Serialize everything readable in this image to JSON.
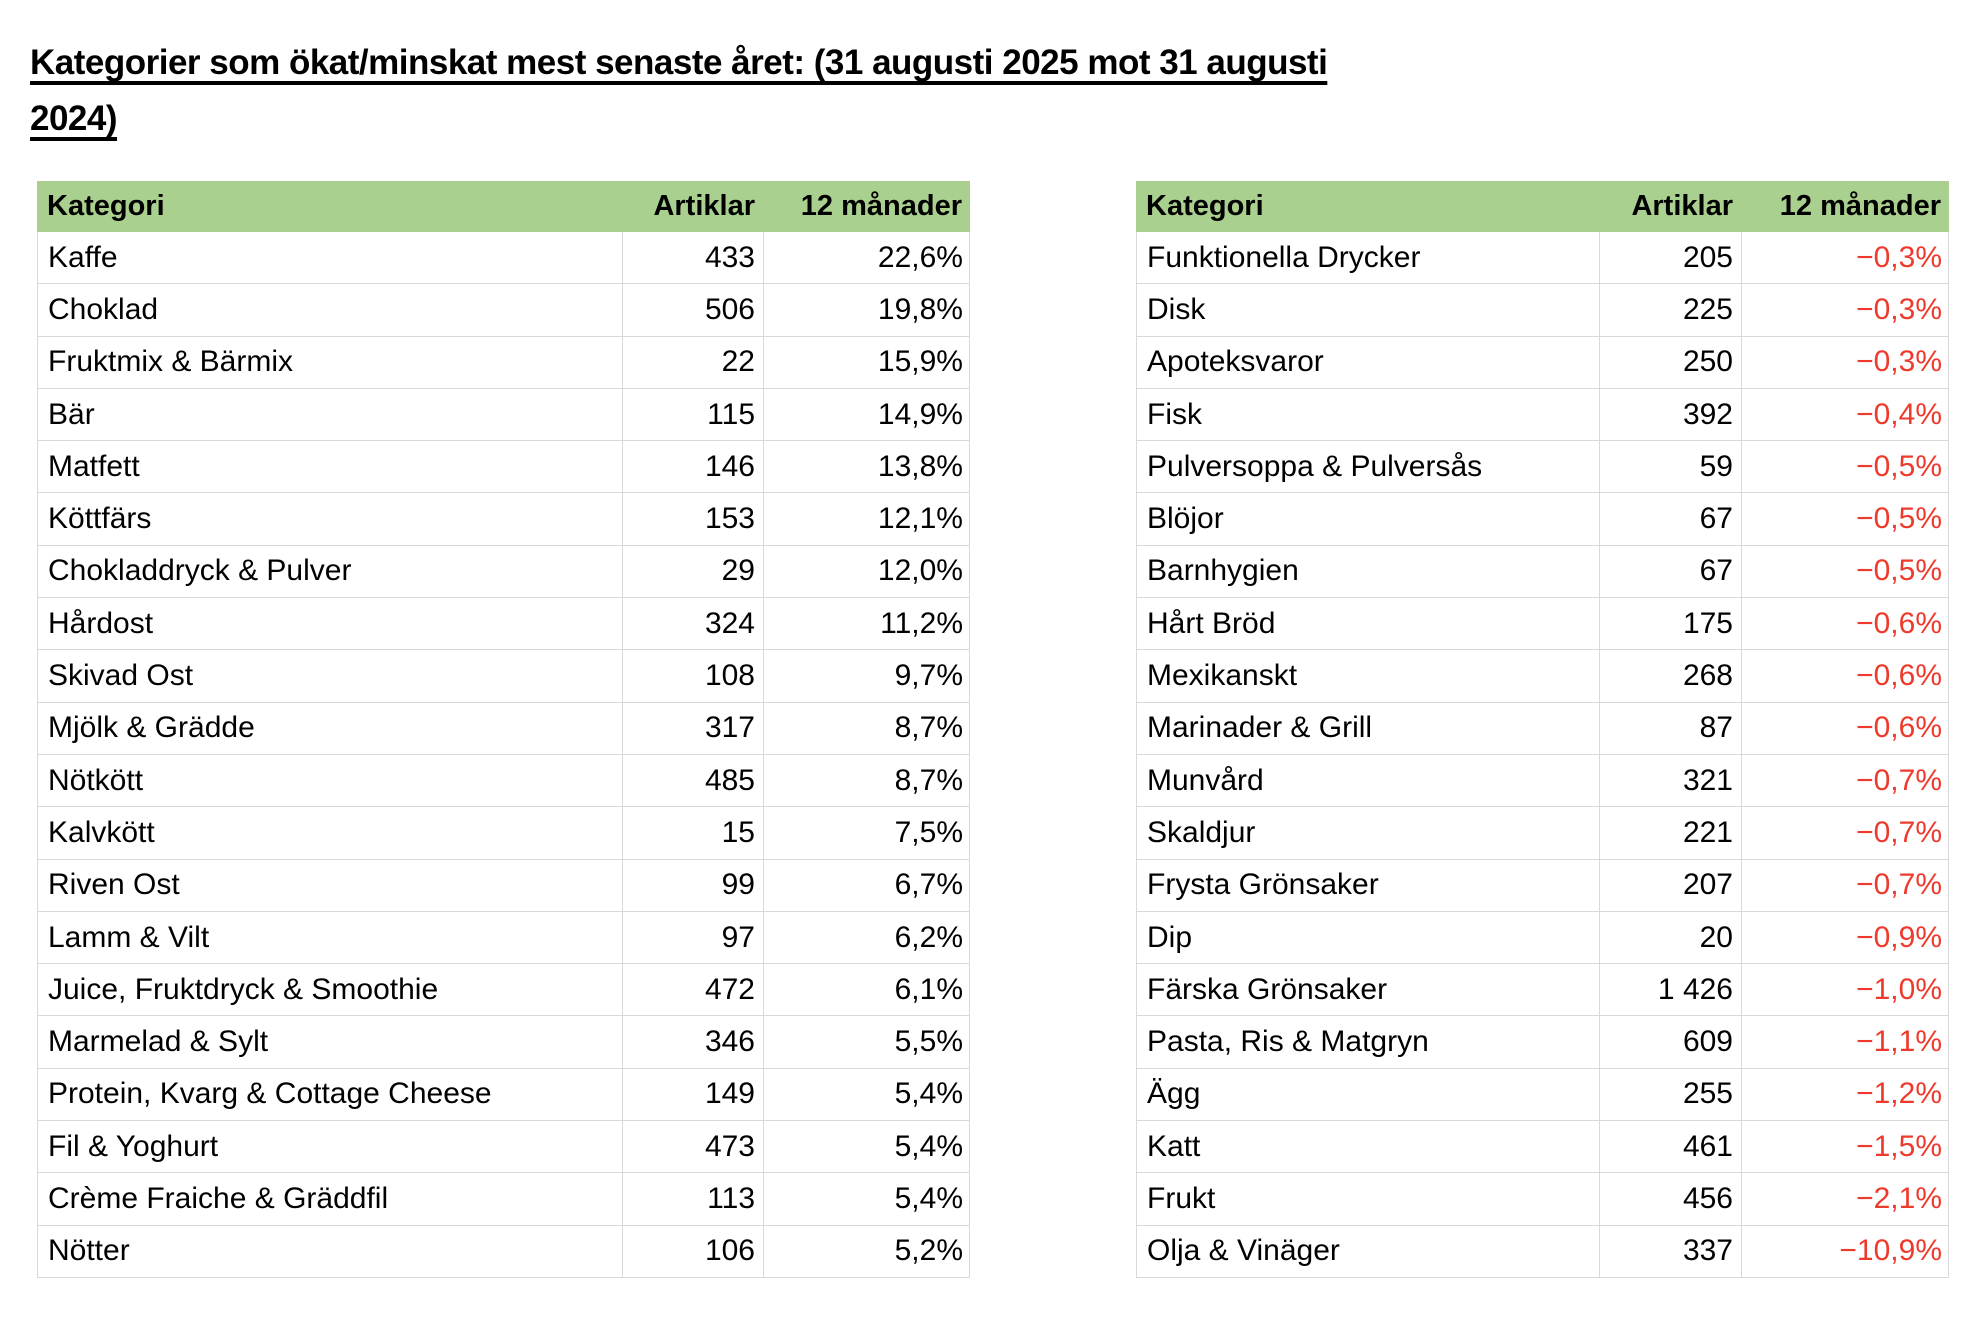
{
  "title": {
    "line1": "Kategorier som ökat/minskat mest senaste året: (31 augusti 2025 mot 31 augusti",
    "line2": "2024)"
  },
  "colors": {
    "header_bg": "#A9D08E",
    "border": "#D9D9D9",
    "negative": "#EE3A2C",
    "text": "#000000"
  },
  "left_table": {
    "headers": {
      "category": "Kategori",
      "articles": "Artiklar",
      "change": "12 månader"
    },
    "rows": [
      {
        "category": "Kaffe",
        "articles": "433",
        "change": "22,6%"
      },
      {
        "category": "Choklad",
        "articles": "506",
        "change": "19,8%"
      },
      {
        "category": "Fruktmix & Bärmix",
        "articles": "22",
        "change": "15,9%"
      },
      {
        "category": "Bär",
        "articles": "115",
        "change": "14,9%"
      },
      {
        "category": "Matfett",
        "articles": "146",
        "change": "13,8%"
      },
      {
        "category": "Köttfärs",
        "articles": "153",
        "change": "12,1%"
      },
      {
        "category": "Chokladdryck & Pulver",
        "articles": "29",
        "change": "12,0%"
      },
      {
        "category": "Hårdost",
        "articles": "324",
        "change": "11,2%"
      },
      {
        "category": "Skivad Ost",
        "articles": "108",
        "change": "9,7%"
      },
      {
        "category": "Mjölk & Grädde",
        "articles": "317",
        "change": "8,7%"
      },
      {
        "category": "Nötkött",
        "articles": "485",
        "change": "8,7%"
      },
      {
        "category": "Kalvkött",
        "articles": "15",
        "change": "7,5%"
      },
      {
        "category": "Riven Ost",
        "articles": "99",
        "change": "6,7%"
      },
      {
        "category": "Lamm & Vilt",
        "articles": "97",
        "change": "6,2%"
      },
      {
        "category": "Juice, Fruktdryck & Smoothie",
        "articles": "472",
        "change": "6,1%"
      },
      {
        "category": "Marmelad & Sylt",
        "articles": "346",
        "change": "5,5%"
      },
      {
        "category": "Protein, Kvarg & Cottage Cheese",
        "articles": "149",
        "change": "5,4%"
      },
      {
        "category": "Fil & Yoghurt",
        "articles": "473",
        "change": "5,4%"
      },
      {
        "category": "Crème Fraiche & Gräddfil",
        "articles": "113",
        "change": "5,4%"
      },
      {
        "category": "Nötter",
        "articles": "106",
        "change": "5,2%"
      }
    ]
  },
  "right_table": {
    "headers": {
      "category": "Kategori",
      "articles": "Artiklar",
      "change": "12 månader"
    },
    "rows": [
      {
        "category": "Funktionella Drycker",
        "articles": "205",
        "change": "−0,3%"
      },
      {
        "category": "Disk",
        "articles": "225",
        "change": "−0,3%"
      },
      {
        "category": "Apoteksvaror",
        "articles": "250",
        "change": "−0,3%"
      },
      {
        "category": "Fisk",
        "articles": "392",
        "change": "−0,4%"
      },
      {
        "category": "Pulversoppa & Pulversås",
        "articles": "59",
        "change": "−0,5%"
      },
      {
        "category": "Blöjor",
        "articles": "67",
        "change": "−0,5%"
      },
      {
        "category": "Barnhygien",
        "articles": "67",
        "change": "−0,5%"
      },
      {
        "category": "Hårt Bröd",
        "articles": "175",
        "change": "−0,6%"
      },
      {
        "category": "Mexikanskt",
        "articles": "268",
        "change": "−0,6%"
      },
      {
        "category": "Marinader & Grill",
        "articles": "87",
        "change": "−0,6%"
      },
      {
        "category": "Munvård",
        "articles": "321",
        "change": "−0,7%"
      },
      {
        "category": "Skaldjur",
        "articles": "221",
        "change": "−0,7%"
      },
      {
        "category": "Frysta Grönsaker",
        "articles": "207",
        "change": "−0,7%"
      },
      {
        "category": "Dip",
        "articles": "20",
        "change": "−0,9%"
      },
      {
        "category": "Färska Grönsaker",
        "articles": "1 426",
        "change": "−1,0%"
      },
      {
        "category": "Pasta, Ris & Matgryn",
        "articles": "609",
        "change": "−1,1%"
      },
      {
        "category": "Ägg",
        "articles": "255",
        "change": "−1,2%"
      },
      {
        "category": "Katt",
        "articles": "461",
        "change": "−1,5%"
      },
      {
        "category": "Frukt",
        "articles": "456",
        "change": "−2,1%"
      },
      {
        "category": "Olja & Vinäger",
        "articles": "337",
        "change": "−10,9%"
      }
    ]
  }
}
